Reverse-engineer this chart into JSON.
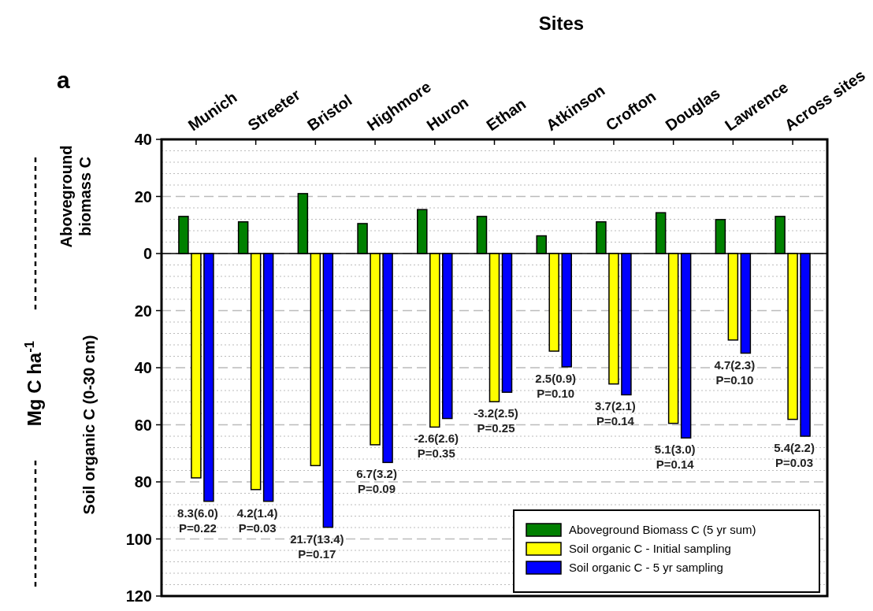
{
  "chart_data": {
    "type": "bar",
    "xlabel": "Sites",
    "ylabel": "Mg C ha$^{-1}$",
    "categories": [
      "Munich",
      "Streeter",
      "Bristol",
      "Highmore",
      "Huron",
      "Ethan",
      "Atkinson",
      "Crofton",
      "Douglas",
      "Lawrence",
      "Across sites"
    ],
    "series": [
      {
        "name": "Aboveground Biomass C (5 yr sum)",
        "color": "#008000",
        "values": [
          13,
          11.1,
          21,
          10.5,
          15.4,
          13,
          6.2,
          11.1,
          14.3,
          11.9,
          13
        ]
      },
      {
        "name": "Soil organic C - Initial sampling",
        "color": "#ffff00",
        "values": [
          -78.6,
          -82.7,
          -74.3,
          -67,
          -60.8,
          -51.9,
          -34.2,
          -45.7,
          -59.5,
          -30.3,
          -58.1
        ]
      },
      {
        "name": "Soil organic C - 5 yr sampling",
        "color": "#0000ff",
        "values": [
          -86.8,
          -86.8,
          -95.9,
          -73.2,
          -57.8,
          -48.6,
          -39.7,
          -49.5,
          -64.6,
          -34.9,
          -64
        ]
      }
    ],
    "ylim": [
      -120,
      40
    ],
    "yticks": [
      40,
      20,
      0,
      {
        "value": -20,
        "label": "20"
      },
      {
        "value": -40,
        "label": "40"
      },
      {
        "value": -60,
        "label": "60"
      },
      {
        "value": -80,
        "label": "80"
      },
      {
        "value": -100,
        "label": "100"
      },
      {
        "value": -120,
        "label": "120"
      }
    ],
    "grid": "y",
    "legend": "bottom right",
    "annotations": [
      "a",
      "Aboveground biomass C",
      "Soil organic C (0-30 cm)",
      "8.3(6.0)\nP=0.22",
      "4.2(1.4)\nP=0.03",
      "21.7(13.4)\nP=0.17",
      "6.7(3.2)\nP=0.09",
      "-2.6(2.6)\nP=0.35",
      "-3.2(2.5)\nP=0.25",
      "2.5(0.9)\nP=0.10",
      "3.7(2.1)\nP=0.14",
      "5.1(3.0)\nP=0.14",
      "4.7(2.3)\nP=0.10",
      "5.4(2.2)\nP=0.03"
    ]
  }
}
